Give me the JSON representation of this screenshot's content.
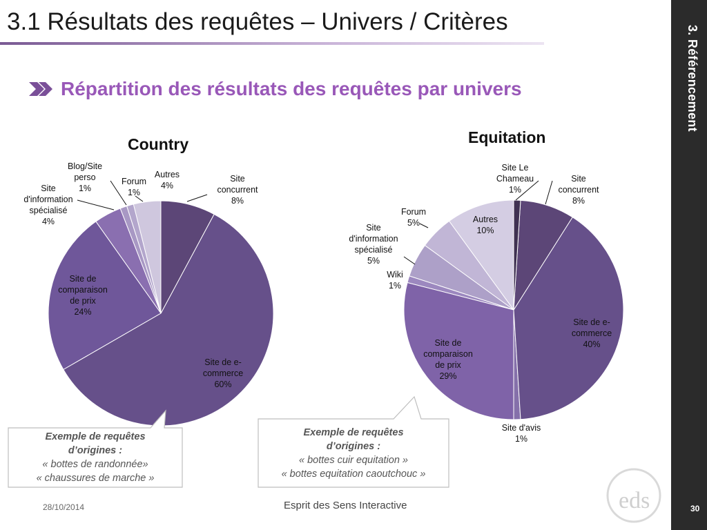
{
  "slide": {
    "title": "3.1 Résultats des requêtes – Univers / Critères",
    "section_label": "3. Référencement",
    "subtitle": "Répartition des résultats des requêtes par univers",
    "page_number": "30",
    "footer_date": "28/10/2014",
    "footer_brand": "Esprit des Sens Interactive",
    "logo_text": "eds"
  },
  "colors": {
    "accent": "#9958b8",
    "sidebar": "#2b2b2b",
    "slice_dark": "#5c4677",
    "slice_main": "#66508a",
    "slice_mid": "#7f63a8",
    "slice_light": "#9a87b8"
  },
  "callouts": [
    {
      "title_line1": "Exemple de requêtes",
      "title_line2": "d’origines :",
      "line1": "« bottes de randonnée»",
      "line2": "« chaussures de marche »"
    },
    {
      "title_line1": "Exemple de requêtes",
      "title_line2": "d’origines :",
      "line1": "« bottes cuir equitation »",
      "line2": "« bottes equitation caoutchouc »"
    }
  ],
  "chart_data": [
    {
      "type": "pie",
      "title": "Country",
      "categories": [
        "Site concurrent",
        "Site de e-commerce",
        "Site de comparaison de prix",
        "Site d'information spécialisé",
        "Blog/Site perso",
        "Forum",
        "Autres"
      ],
      "values": [
        8,
        60,
        24,
        4,
        1,
        1,
        4
      ],
      "labels": [
        "Site\nconcurrent\n8%",
        "Site de e-\ncommerce\n60%",
        "Site de\ncomparaison\nde prix\n24%",
        "Site\nd'information\nspécialisé\n4%",
        "Blog/Site\nperso\n1%",
        "Forum\n1%",
        "Autres\n4%"
      ],
      "colors": [
        "#5c4677",
        "#66508a",
        "#6f579a",
        "#8a6fb0",
        "#a898c4",
        "#b3a6cc",
        "#cfc7de"
      ]
    },
    {
      "type": "pie",
      "title": "Equitation",
      "categories": [
        "Site Le Chameau",
        "Site concurrent",
        "Site de e-commerce",
        "Site d'avis",
        "Site de comparaison de prix",
        "Wiki",
        "Site d'information spécialisé",
        "Forum",
        "Autres"
      ],
      "values": [
        1,
        8,
        40,
        1,
        29,
        1,
        5,
        5,
        10
      ],
      "labels": [
        "Site Le\nChameau\n1%",
        "Site\nconcurrent\n8%",
        "Site de e-\ncommerce\n40%",
        "Site d'avis\n1%",
        "Site de\ncomparaison\nde prix\n29%",
        "Wiki\n1%",
        "Site\nd'information\nspécialisé\n5%",
        "Forum\n5%",
        "Autres\n10%"
      ],
      "colors": [
        "#3f3152",
        "#5c4677",
        "#66508a",
        "#8570aa",
        "#7f63a8",
        "#9c88bf",
        "#ada0c8",
        "#c1b6d6",
        "#d4cde3"
      ]
    }
  ]
}
